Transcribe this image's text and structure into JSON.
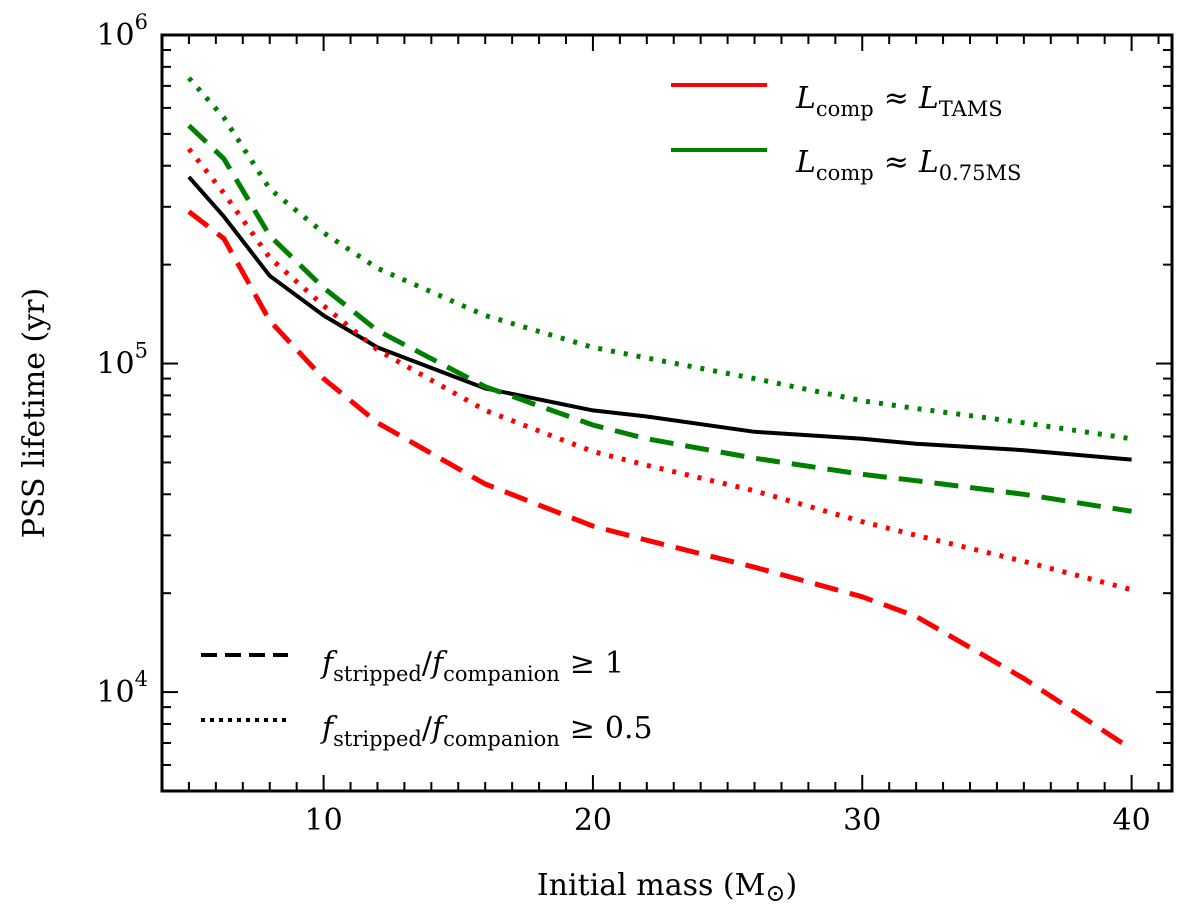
{
  "chart_data": {
    "type": "line",
    "xlabel_text": "Initial mass (M",
    "xlabel_sym": "⊙",
    "xlabel_close": ")",
    "ylabel": "PSS lifetime (yr)",
    "xlim": [
      4,
      41.5
    ],
    "ylim": [
      5000,
      1000000
    ],
    "yscale": "log",
    "grid": false,
    "x_ticks": [
      10,
      20,
      30,
      40
    ],
    "y_ticks": [
      {
        "value": 10000,
        "base": "10",
        "exp": "4"
      },
      {
        "value": 100000,
        "base": "10",
        "exp": "5"
      },
      {
        "value": 1000000,
        "base": "10",
        "exp": "6"
      }
    ],
    "series": [
      {
        "key": "total",
        "color": "#000000",
        "style": "solid",
        "x": [
          5,
          6.3,
          8,
          10,
          12,
          16,
          20,
          22,
          26,
          30,
          32,
          36,
          40
        ],
        "y": [
          370000,
          280000,
          185000,
          140000,
          112000,
          84000,
          72000,
          69000,
          62000,
          59000,
          57000,
          54500,
          51000
        ]
      },
      {
        "key": "tams-dashed",
        "color": "#ff0000",
        "style": "dashed",
        "x": [
          5,
          6.3,
          8,
          10,
          12,
          16,
          20,
          22,
          26,
          30,
          32,
          36,
          40
        ],
        "y": [
          290000,
          240000,
          135000,
          90000,
          66000,
          43000,
          32000,
          29000,
          24000,
          19500,
          17000,
          11000,
          6700
        ]
      },
      {
        "key": "tams-dotted",
        "color": "#ff0000",
        "style": "dotted",
        "x": [
          5,
          6.3,
          8,
          10,
          12,
          16,
          20,
          22,
          26,
          30,
          32,
          36,
          40
        ],
        "y": [
          450000,
          330000,
          210000,
          150000,
          110000,
          72000,
          54000,
          49000,
          41000,
          33000,
          30000,
          25000,
          20500
        ]
      },
      {
        "key": "ms075-dashed",
        "color": "#007f00",
        "style": "dashed",
        "x": [
          5,
          6.3,
          8,
          10,
          12,
          16,
          20,
          22,
          26,
          30,
          32,
          36,
          40
        ],
        "y": [
          530000,
          420000,
          245000,
          170000,
          126000,
          85000,
          65000,
          59000,
          51500,
          46000,
          44000,
          40000,
          35500
        ]
      },
      {
        "key": "ms075-dotted",
        "color": "#007f00",
        "style": "dotted",
        "x": [
          5,
          6.3,
          8,
          10,
          12,
          16,
          20,
          22,
          26,
          30,
          32,
          36,
          40
        ],
        "y": [
          740000,
          560000,
          340000,
          250000,
          195000,
          140000,
          112000,
          104000,
          90000,
          77000,
          73000,
          66000,
          59000
        ]
      }
    ],
    "legend_color": {
      "placement": "top-right",
      "entries": [
        {
          "color": "#ff0000",
          "l": "L",
          "sub1": "comp",
          "rel": "≈",
          "l2": "L",
          "sub2": "TAMS"
        },
        {
          "color": "#007f00",
          "l": "L",
          "sub1": "comp",
          "rel": "≈",
          "l2": "L",
          "sub2": "0.75MS"
        }
      ]
    },
    "legend_style": {
      "placement": "bottom-left",
      "entries": [
        {
          "style": "dashed",
          "f1": "f",
          "s1": "stripped",
          "slash": "/",
          "f2": "f",
          "s2": "companion",
          "rel": "≥",
          "val": "1"
        },
        {
          "style": "dotted",
          "f1": "f",
          "s1": "stripped",
          "slash": "/",
          "f2": "f",
          "s2": "companion",
          "rel": "≥",
          "val": "0.5"
        }
      ]
    }
  }
}
